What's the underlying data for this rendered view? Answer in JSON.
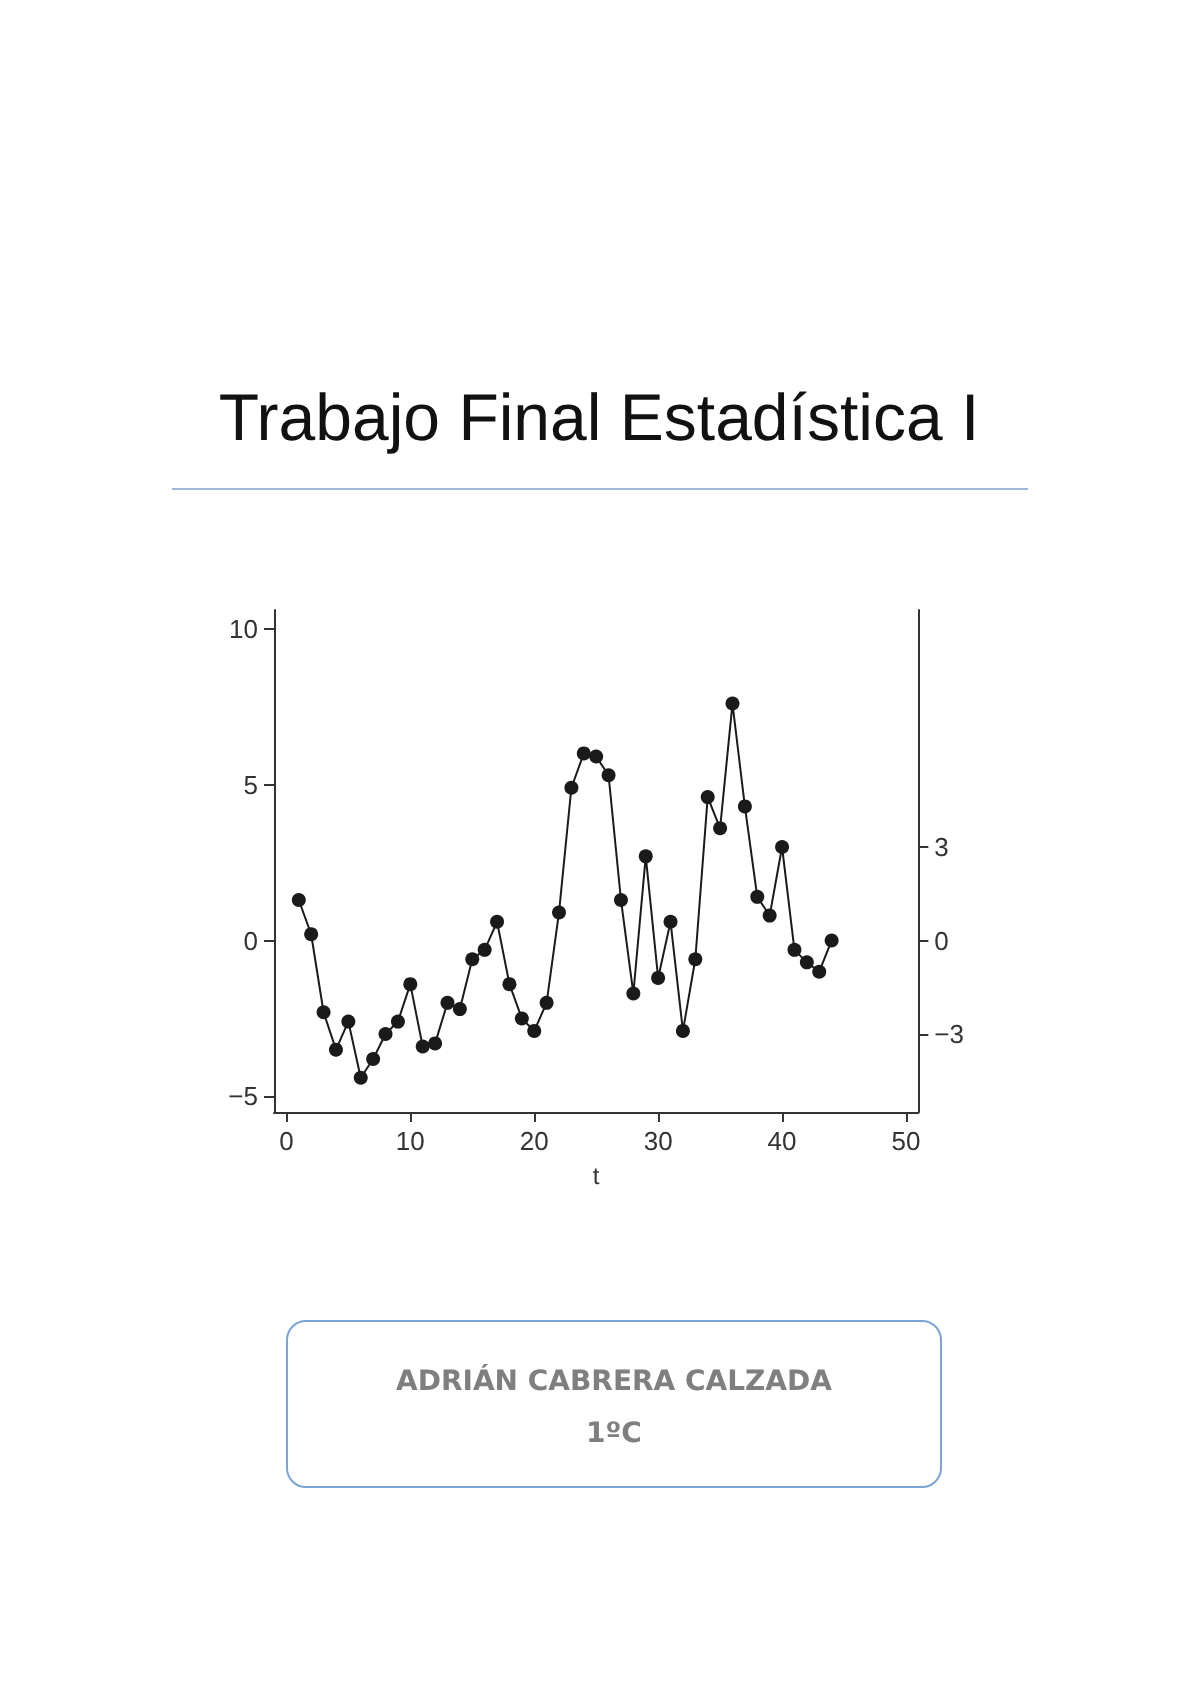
{
  "chart_data": {
    "type": "line",
    "title": "Trabajo Final Estadística I",
    "xlabel": "t",
    "x": [
      1,
      2,
      3,
      4,
      5,
      6,
      7,
      8,
      9,
      10,
      11,
      12,
      13,
      14,
      15,
      16,
      17,
      18,
      19,
      20,
      21,
      22,
      23,
      24,
      25,
      26,
      27,
      28,
      29,
      30,
      31,
      32,
      33,
      34,
      35,
      36,
      37,
      38,
      39,
      40,
      41,
      42,
      43,
      44
    ],
    "series": [
      {
        "color": "#1a1a1a",
        "values": [
          1.3,
          0.2,
          -2.3,
          -3.5,
          -2.6,
          -4.4,
          -3.8,
          -3.0,
          -2.6,
          -1.4,
          -3.4,
          -3.3,
          -2.0,
          -2.2,
          -0.6,
          -0.3,
          0.6,
          -1.4,
          -2.5,
          -2.9,
          -2.0,
          0.9,
          4.9,
          6.0,
          5.9,
          5.3,
          1.3,
          -1.7,
          2.7,
          -1.2,
          0.6,
          -2.9,
          -0.6,
          4.6,
          3.6,
          7.6,
          4.3,
          1.4,
          0.8,
          3.0,
          -0.3,
          -0.7,
          -1.0,
          0.0
        ]
      }
    ],
    "xlim": [
      -1,
      51
    ],
    "xticks": [
      0,
      10,
      20,
      30,
      40,
      50
    ],
    "ylim": [
      -5.5,
      10.6
    ],
    "yticks": [
      -5,
      0,
      5,
      10
    ],
    "y2lim": [
      -5.5,
      10.6
    ],
    "y2ticks": [
      -3,
      0,
      3
    ],
    "grid": false,
    "marker": "circle",
    "line_style": "solid",
    "annotations": [
      "ADRIÁN CABRERA CALZADA",
      "1ºC"
    ]
  }
}
